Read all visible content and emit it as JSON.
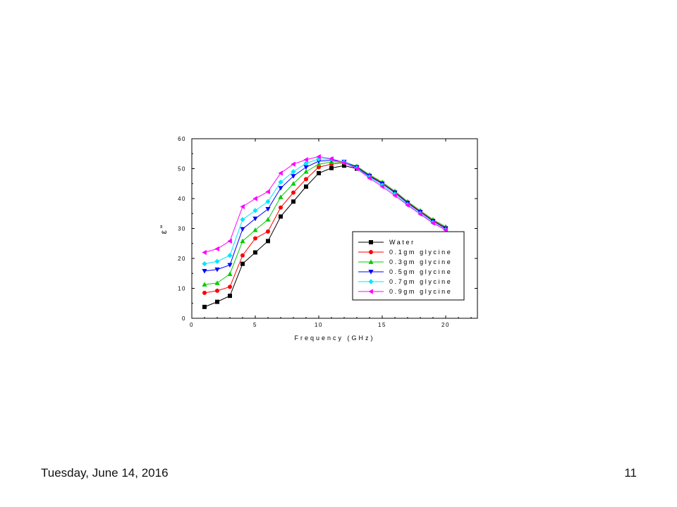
{
  "footer": {
    "date": "Tuesday, June 14, 2016",
    "page_number": "11"
  },
  "chart_data": {
    "type": "line",
    "xlabel": "Frequency (GHz)",
    "ylabel": "ε\"",
    "xlim": [
      0,
      22.5
    ],
    "ylim": [
      0,
      60
    ],
    "xticks": [
      0,
      5,
      10,
      15,
      20
    ],
    "yticks": [
      0,
      10,
      20,
      30,
      40,
      50,
      60
    ],
    "x": [
      1,
      2,
      3,
      4,
      5,
      6,
      7,
      8,
      9,
      10,
      11,
      12,
      13,
      14,
      15,
      16,
      17,
      18,
      19,
      20
    ],
    "legend_position": "lower-right",
    "grid": false,
    "series": [
      {
        "name": "Water",
        "color": "#000000",
        "marker": "square",
        "values": [
          3.8,
          5.5,
          7.5,
          18.2,
          22,
          25.8,
          34,
          39,
          44,
          48.5,
          50.2,
          51,
          50,
          47.5,
          45,
          42,
          38.5,
          35.5,
          32.5,
          30
        ]
      },
      {
        "name": "0.1gm glycine",
        "color": "#ff0000",
        "marker": "circle",
        "values": [
          8.5,
          9.2,
          10.5,
          21,
          26.7,
          29,
          37,
          42,
          46.5,
          50.5,
          51.5,
          52,
          50.5,
          47.8,
          45.2,
          42.2,
          38.8,
          35.7,
          32.7,
          30.3
        ]
      },
      {
        "name": "0.3gm glycine",
        "color": "#00cc00",
        "marker": "triangle-up",
        "values": [
          11.3,
          11.8,
          14.8,
          25.8,
          29.5,
          33,
          40.5,
          45,
          49,
          51.5,
          52.2,
          52.2,
          50.8,
          48,
          45.5,
          42.5,
          39,
          36,
          33,
          30.6
        ]
      },
      {
        "name": "0.5gm glycine",
        "color": "#0000ff",
        "marker": "triangle-down",
        "values": [
          15.8,
          16.3,
          17.8,
          29.8,
          33.3,
          36.5,
          43.5,
          47.5,
          50.5,
          52.5,
          52.8,
          52.3,
          50.5,
          47.5,
          45,
          42,
          38.5,
          35.5,
          32.5,
          30
        ]
      },
      {
        "name": "0.7gm glycine",
        "color": "#00e5ff",
        "marker": "diamond",
        "values": [
          18.2,
          19,
          21,
          33,
          36,
          39,
          45.5,
          49,
          51.8,
          53.2,
          53.2,
          52.2,
          50.2,
          47.2,
          44.5,
          41.5,
          38,
          35,
          32,
          29.6
        ]
      },
      {
        "name": "0.9gm glycine",
        "color": "#ff00ff",
        "marker": "triangle-left",
        "values": [
          22,
          23.2,
          25.8,
          37.3,
          40,
          42.3,
          48.5,
          51.5,
          53,
          54,
          53.3,
          52,
          50,
          46.8,
          44,
          41,
          37.8,
          34.8,
          31.8,
          29.5
        ]
      }
    ]
  }
}
